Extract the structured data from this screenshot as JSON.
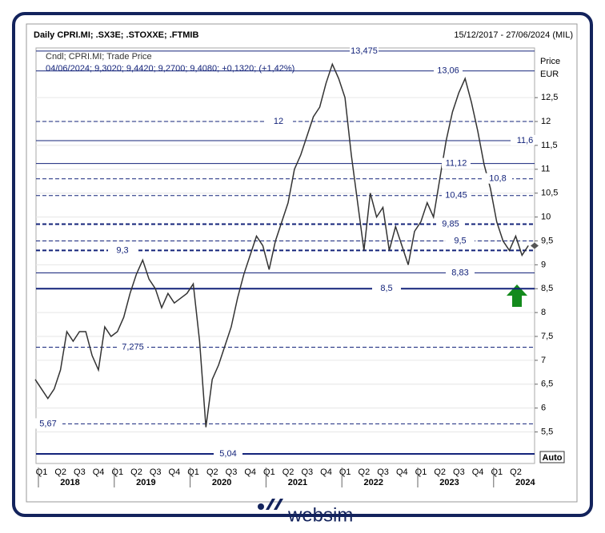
{
  "chart_data": {
    "type": "line",
    "title": "Daily CPRI.MI; .SX3E; .STOXXE; .FTMIB",
    "date_range": "15/12/2017 - 27/06/2024 (MIL)",
    "legend_lines": [
      "Cndl; CPRI.MI; Trade Price",
      "04/06/2024; 9,3020; 9,4420; 9,2700; 9,4080; +0,1320; (+1,42%)"
    ],
    "y_axis_title": [
      "Price",
      "EUR"
    ],
    "scale_mode": "Auto",
    "color": "#333333",
    "ylim": [
      4.84,
      13.54
    ],
    "yticks": [
      {
        "value": 5.5,
        "label": "5,5"
      },
      6,
      {
        "value": 6.5,
        "label": "6,5"
      },
      7,
      {
        "value": 7.5,
        "label": "7,5"
      },
      8,
      {
        "value": 8.5,
        "label": "8,5"
      },
      9,
      {
        "value": 9.5,
        "label": "9,5"
      },
      10,
      {
        "value": 10.5,
        "label": "10,5"
      },
      11,
      {
        "value": 11.5,
        "label": "11,5"
      },
      12,
      {
        "value": 12.5,
        "label": "12,5"
      }
    ],
    "grid": true,
    "quarters": [
      "Q1",
      "Q2",
      "Q3",
      "Q4",
      "Q1",
      "Q2",
      "Q3",
      "Q4",
      "Q1",
      "Q2",
      "Q3",
      "Q4",
      "Q1",
      "Q2",
      "Q3",
      "Q4",
      "Q1",
      "Q2",
      "Q3",
      "Q4",
      "Q1",
      "Q2",
      "Q3",
      "Q4",
      "Q1",
      "Q2"
    ],
    "years": [
      "2018",
      "2019",
      "2020",
      "2021",
      "2022",
      "2023",
      "2024"
    ],
    "values": [
      6.6,
      6.4,
      6.2,
      6.4,
      6.8,
      7.6,
      7.4,
      7.6,
      7.6,
      7.1,
      6.8,
      7.7,
      7.5,
      7.6,
      7.9,
      8.4,
      8.8,
      9.1,
      8.7,
      8.5,
      8.1,
      8.4,
      8.2,
      8.3,
      8.4,
      8.6,
      7.4,
      5.6,
      6.6,
      6.9,
      7.3,
      7.7,
      8.3,
      8.8,
      9.2,
      9.6,
      9.4,
      8.9,
      9.5,
      9.9,
      10.3,
      11.0,
      11.3,
      11.7,
      12.1,
      12.3,
      12.8,
      13.2,
      12.9,
      12.5,
      11.3,
      10.3,
      9.3,
      10.5,
      10.0,
      10.2,
      9.3,
      9.8,
      9.4,
      9.0,
      9.7,
      9.9,
      10.3,
      10.0,
      10.8,
      11.6,
      12.2,
      12.6,
      12.9,
      12.4,
      11.8,
      11.1,
      10.6,
      9.9,
      9.5,
      9.3,
      9.6,
      9.2,
      9.4
    ],
    "levels": [
      {
        "value": 13.475,
        "label": "13,475",
        "style": "solid"
      },
      {
        "value": 13.06,
        "label": "13,06",
        "style": "solid"
      },
      {
        "value": 12,
        "label": "12",
        "style": "dashed"
      },
      {
        "value": 11.6,
        "label": "11,6",
        "style": "solid"
      },
      {
        "value": 11.12,
        "label": "11,12",
        "style": "solid"
      },
      {
        "value": 10.8,
        "label": "10,8",
        "style": "dashed"
      },
      {
        "value": 10.45,
        "label": "10,45",
        "style": "dashed"
      },
      {
        "value": 9.85,
        "label": "9,85",
        "style": "bold-dashed"
      },
      {
        "value": 9.5,
        "label": "9,5",
        "style": "dashed"
      },
      {
        "value": 9.3,
        "label": "9,3",
        "style": "bold-dashed"
      },
      {
        "value": 8.83,
        "label": "8,83",
        "style": "solid"
      },
      {
        "value": 8.5,
        "label": "8,5",
        "style": "bold"
      },
      {
        "value": 7.275,
        "label": "7,275",
        "style": "dashed"
      },
      {
        "value": 5.67,
        "label": "5,67",
        "style": "dashed"
      },
      {
        "value": 5.04,
        "label": "5,04",
        "style": "bold"
      }
    ]
  },
  "footer": {
    "brand": "websim"
  }
}
